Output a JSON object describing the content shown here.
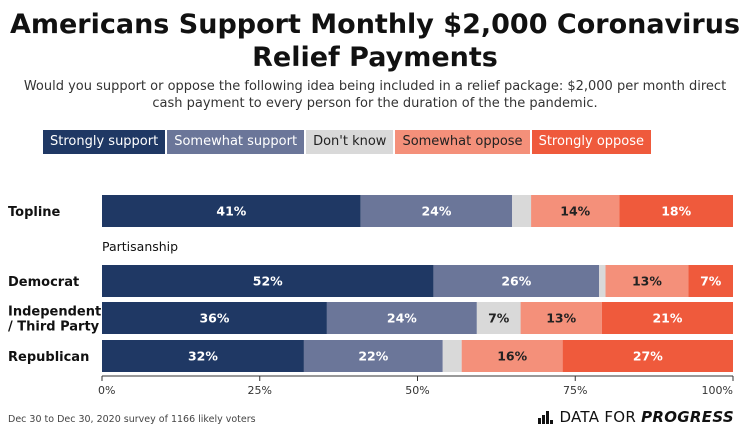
{
  "title_line1": "Americans Support Monthly $2,000 Coronavirus",
  "title_line2": "Relief Payments",
  "subtitle": "Would you support or oppose the following idea being included in a relief package: $2,000 per month direct cash payment to every person for the duration of the the pandemic.",
  "footer": "Dec 30 to Dec 30, 2020 survey of 1166 likely voters",
  "brand": {
    "part1": "DATA FOR",
    "part2": "PROGRESS"
  },
  "chart_data": {
    "type": "bar",
    "orientation": "horizontal",
    "stacked": true,
    "categories": [
      "Topline",
      "Democrat",
      "Independent / Third Party",
      "Republican"
    ],
    "category_display": [
      [
        "Topline"
      ],
      [
        "Democrat"
      ],
      [
        "Independent",
        "/ Third Party"
      ],
      [
        "Republican"
      ]
    ],
    "group_label": "Partisanship",
    "group_label_before": 1,
    "series": [
      {
        "name": "Strongly support",
        "color": "#1f3864",
        "values": [
          41,
          52,
          36,
          32
        ]
      },
      {
        "name": "Somewhat support",
        "color": "#6b7699",
        "values": [
          24,
          26,
          24,
          22
        ]
      },
      {
        "name": "Don't know",
        "color": "#d9d9d9",
        "values": [
          3,
          1,
          7,
          3
        ]
      },
      {
        "name": "Somewhat oppose",
        "color": "#f4907a",
        "values": [
          14,
          13,
          13,
          16
        ]
      },
      {
        "name": "Strongly oppose",
        "color": "#ef5a3c",
        "values": [
          18,
          7,
          21,
          27
        ]
      }
    ],
    "data_labels": [
      [
        "41%",
        "52%",
        "36%",
        "32%"
      ],
      [
        "24%",
        "26%",
        "24%",
        "22%"
      ],
      [
        "",
        "",
        "7%",
        ""
      ],
      [
        "14%",
        "13%",
        "13%",
        "16%"
      ],
      [
        "18%",
        "7%",
        "21%",
        "27%"
      ]
    ],
    "label_colors": [
      "#ffffff",
      "#ffffff",
      "#222222",
      "#222222",
      "#ffffff"
    ],
    "xlim": [
      0,
      100
    ],
    "xticks": [
      0,
      25,
      50,
      75,
      100
    ],
    "xtick_labels": [
      "0%",
      "25%",
      "50%",
      "75%",
      "100%"
    ],
    "legend_position": "top",
    "grid": false
  }
}
